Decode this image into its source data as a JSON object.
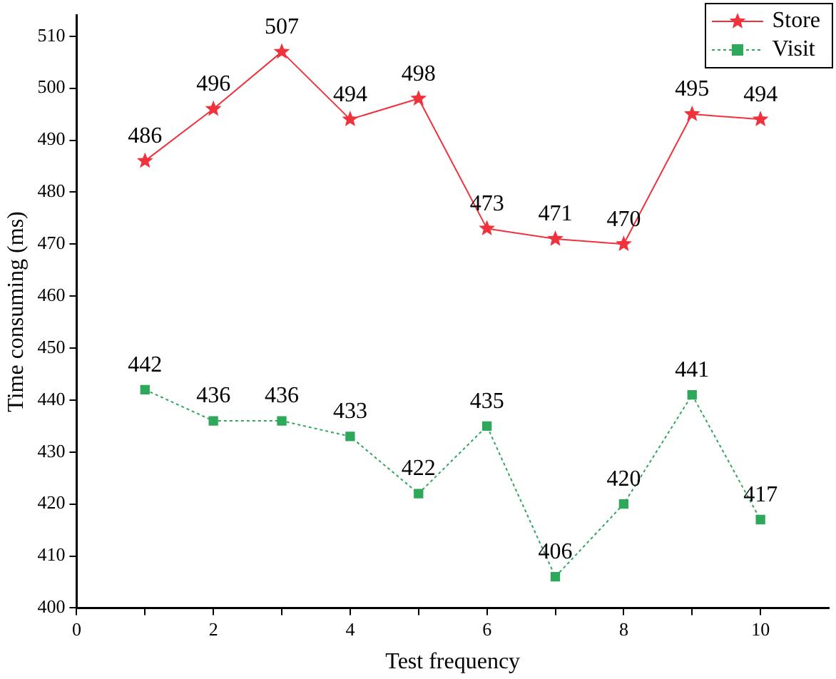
{
  "chart_data": {
    "type": "line",
    "xlabel": "Test frequency",
    "ylabel": "Time consuming (ms)",
    "x": [
      1,
      2,
      3,
      4,
      5,
      6,
      7,
      8,
      9,
      10
    ],
    "series": [
      {
        "name": "Store",
        "color": "#f0323c",
        "values": [
          486,
          496,
          507,
          494,
          498,
          473,
          471,
          470,
          495,
          494
        ],
        "marker": "star",
        "line_style": "solid"
      },
      {
        "name": "Visit",
        "color": "#2ea85a",
        "values": [
          442,
          436,
          436,
          433,
          422,
          435,
          406,
          420,
          441,
          417
        ],
        "marker": "square",
        "line_style": "dotted"
      }
    ],
    "xlim": [
      0,
      11
    ],
    "xticks": [
      0,
      {
        "value": 1,
        "label": null
      },
      2,
      {
        "value": 3,
        "label": null
      },
      4,
      {
        "value": 5,
        "label": null
      },
      6,
      {
        "value": 7,
        "label": null
      },
      8,
      {
        "value": 9,
        "label": null
      },
      10
    ],
    "ylim": [
      400,
      514
    ],
    "yticks": [
      400,
      410,
      420,
      430,
      440,
      450,
      460,
      470,
      480,
      490,
      500,
      510
    ],
    "data_labels": true,
    "grid": false,
    "legend": "top right"
  }
}
